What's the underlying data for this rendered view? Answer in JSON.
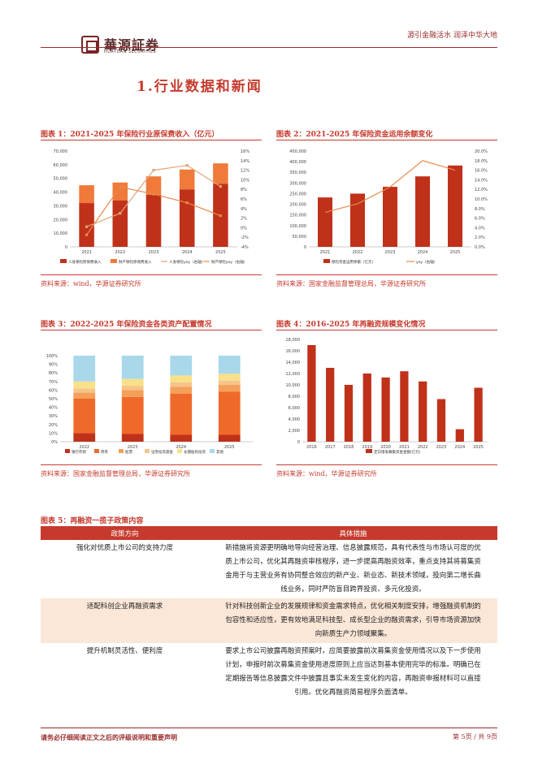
{
  "header": {
    "logo_text": "華源証券",
    "logo_sub": "HUAYUAN SECURITIES",
    "slogan": "源引金融活水 润泽中华大地"
  },
  "section_title": "1.行业数据和新闻",
  "figures": [
    {
      "title": "图表 1：2021-2025 年保险行业原保费收入（亿元）",
      "source": "资料来源：wind，华源证券研究所"
    },
    {
      "title": "图表 2：2021-2025 年保险资金运用余额变化",
      "source": "资料来源：国家金融监督管理总局，华源证券研究所"
    },
    {
      "title": "图表 3：2022-2025 年保险资金各类资产配置情况",
      "source": "资料来源：国家金融监督管理总局，华源证券研究所"
    },
    {
      "title": "图表 4：2016-2025 年再融资规模变化情况",
      "source": "资料来源：wind，华源证券研究所"
    }
  ],
  "chart_data": [
    {
      "type": "bar",
      "categories": [
        "2021",
        "2022",
        "2023",
        "2024",
        "2025"
      ],
      "series": [
        {
          "name": "人身保险原保费收入",
          "kind": "stacked-bar",
          "values": [
            32000,
            34000,
            38000,
            42000,
            46000
          ],
          "color": "#c0311a"
        },
        {
          "name": "财产保险原保费收入",
          "kind": "stacked-bar",
          "values": [
            13000,
            13000,
            13500,
            14500,
            15000
          ],
          "color": "#ef7a3a"
        },
        {
          "name": "人身保险yoy（右轴）",
          "kind": "line",
          "values": [
            0.2,
            3.0,
            12.0,
            13.0,
            8.6
          ],
          "color": "#e0a47a"
        },
        {
          "name": "财产保险yoy（右轴）",
          "kind": "line",
          "values": [
            -1.5,
            8.5,
            7.0,
            5.2,
            2.5
          ],
          "color": "#e88a4a"
        }
      ],
      "ylim": [
        0,
        70000
      ],
      "y_ticks": [
        "0",
        "10,000",
        "20,000",
        "30,000",
        "40,000",
        "50,000",
        "60,000",
        "70,000"
      ],
      "y2lim": [
        -4,
        16
      ],
      "y2_ticks": [
        "-4%",
        "-2%",
        "0%",
        "2%",
        "4%",
        "6%",
        "8%",
        "10%",
        "12%",
        "14%",
        "16%"
      ]
    },
    {
      "type": "bar",
      "categories": [
        "2021",
        "2022",
        "2023",
        "2024",
        "2025"
      ],
      "series": [
        {
          "name": "保险资金运用余额（亿元）",
          "kind": "bar",
          "values": [
            232000,
            250000,
            282000,
            331000,
            382000
          ],
          "color": "#c0311a"
        },
        {
          "name": "yoy（右轴）",
          "kind": "line",
          "values": [
            7.2,
            9.0,
            12.5,
            18.0,
            16.0
          ],
          "color": "#e88a4a"
        }
      ],
      "ylim": [
        0,
        450000
      ],
      "y_ticks": [
        "0",
        "50,000",
        "100,000",
        "150,000",
        "200,000",
        "250,000",
        "300,000",
        "350,000",
        "400,000",
        "450,000"
      ],
      "y2lim": [
        0,
        20
      ],
      "y2_ticks": [
        "0.0%",
        "2.0%",
        "4.0%",
        "6.0%",
        "8.0%",
        "10.0%",
        "12.0%",
        "14.0%",
        "16.0%",
        "18.0%",
        "20.0%"
      ]
    },
    {
      "type": "bar",
      "categories": [
        "2022",
        "2023",
        "2024",
        "2025"
      ],
      "series": [
        {
          "name": "银行存款",
          "values": [
            10,
            9,
            8,
            8
          ],
          "color": "#c0311a"
        },
        {
          "name": "债券",
          "values": [
            40,
            43,
            48,
            50
          ],
          "color": "#ef6a2a"
        },
        {
          "name": "股票",
          "values": [
            7,
            8,
            8,
            8
          ],
          "color": "#f4a05a"
        },
        {
          "name": "证券投资基金",
          "values": [
            5,
            5,
            5,
            5
          ],
          "color": "#f6c48a"
        },
        {
          "name": "长期股权投资",
          "values": [
            8,
            8,
            8,
            8
          ],
          "color": "#f9e08a"
        },
        {
          "name": "其他",
          "values": [
            30,
            27,
            23,
            21
          ],
          "color": "#a8d8ea"
        }
      ],
      "ylim": [
        0,
        100
      ],
      "y_ticks": [
        "0%",
        "10%",
        "20%",
        "30%",
        "40%",
        "50%",
        "60%",
        "70%",
        "80%",
        "90%",
        "100%"
      ]
    },
    {
      "type": "bar",
      "categories": [
        "2016",
        "2017",
        "2018",
        "2019",
        "2020",
        "2021",
        "2022",
        "2023",
        "2024",
        "2025"
      ],
      "series": [
        {
          "name": "定向增发募集资金金额(亿元)",
          "values": [
            17000,
            13000,
            10000,
            12000,
            11300,
            12400,
            10600,
            7500,
            2200,
            9500
          ],
          "color": "#c0311a"
        }
      ],
      "ylim": [
        0,
        18000
      ],
      "y_ticks": [
        "0",
        "2,000",
        "4,000",
        "6,000",
        "8,000",
        "10,000",
        "12,000",
        "14,000",
        "16,000",
        "18,000"
      ]
    }
  ],
  "policy_table": {
    "title": "图表 5：再融资一揽子政策内容",
    "headers": [
      "政策方向",
      "具体措施"
    ],
    "rows": [
      {
        "direction": "强化对优质上市公司的支持力度",
        "lines": [
          "新措施将资源更明确地导向经营治理、信息披露规范，具有代表性与市场认可度的优",
          "质上市公司，优化其再融资审核程序，进一步提高再融资效率，重点支持其将募集资",
          "金用于与主营业务有协同整合效应的新产业、新业态、新技术领域，投向第二增长曲",
          "线业务，同时严防盲目跨界投资、多元化投资。"
        ]
      },
      {
        "direction": "适配科创企业再融资需求",
        "lines": [
          "针对科技创新企业的发展规律和资金需求特点，优化相关制度安排，增强融资机制的",
          "包容性和适应性，更有效地满足科技型、成长型企业的融资需求，引导市场资源加快",
          "向新质生产力领域聚集。"
        ]
      },
      {
        "direction": "提升机制灵活性、便利度",
        "lines": [
          "要求上市公司披露再融资预案时，应简要披露前次募集资金使用情况以及下一步使用",
          "计划，申报时前次募集资金使用进度原则上应当达到基本使用完毕的标准。明确已在",
          "定期报告等信息披露文件中披露且事实未发生变化的内容，再融资申报材料可以直接",
          "引用。优化再融资简易程序负面清单。"
        ]
      }
    ]
  },
  "footer": {
    "disclaimer": "请务必仔细阅读正文之后的评级说明和重要声明",
    "page": "第 5页 / 共 9页"
  }
}
